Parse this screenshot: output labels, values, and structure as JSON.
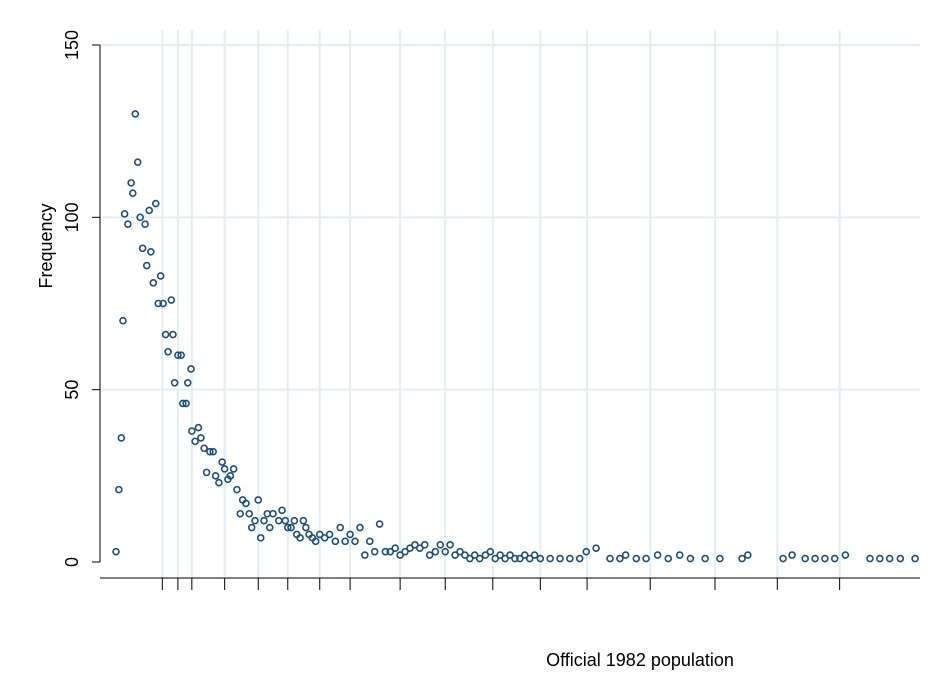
{
  "chart_data": {
    "type": "scatter",
    "y_label": "Frequency",
    "x_label": "Official 1982 population",
    "color": "#1f4e79",
    "grid": true,
    "xlim": [
      0,
      100
    ],
    "ylim": [
      0,
      150
    ],
    "xticks": [
      7.6,
      9.5,
      11.2,
      15.2,
      19.3,
      22.9,
      26.8,
      30.5,
      36.6,
      42.1,
      47.9,
      53.7,
      59.4,
      67.1,
      75,
      82.6,
      90.2
    ],
    "yticks": [
      0,
      50,
      100,
      150
    ],
    "x": [
      1.95,
      2.3,
      2.6,
      2.8,
      3.0,
      3.4,
      3.8,
      4.0,
      4.3,
      4.6,
      4.9,
      5.2,
      5.5,
      5.7,
      6.0,
      6.2,
      6.5,
      6.8,
      7.1,
      7.4,
      7.7,
      8.0,
      8.3,
      8.7,
      8.9,
      9.1,
      9.5,
      9.9,
      10.1,
      10.5,
      10.7,
      11.1,
      11.2,
      11.6,
      12.0,
      12.3,
      12.7,
      13.0,
      13.4,
      13.8,
      14.1,
      14.5,
      14.9,
      15.2,
      15.6,
      15.9,
      16.3,
      16.7,
      17.1,
      17.4,
      17.8,
      18.2,
      18.5,
      18.9,
      19.3,
      19.6,
      20.0,
      20.4,
      20.7,
      21.1,
      21.8,
      22.2,
      22.6,
      22.9,
      23.3,
      23.7,
      24.0,
      24.4,
      24.8,
      25.1,
      25.5,
      25.9,
      26.3,
      26.8,
      27.4,
      28.0,
      28.7,
      29.3,
      29.9,
      30.5,
      31.1,
      31.7,
      32.3,
      32.9,
      33.5,
      34.1,
      34.8,
      35.4,
      36.0,
      36.6,
      37.2,
      37.8,
      38.4,
      39.0,
      39.6,
      40.2,
      40.9,
      41.5,
      42.1,
      42.7,
      43.3,
      43.9,
      44.5,
      45.1,
      45.7,
      46.3,
      47.0,
      47.6,
      48.2,
      48.8,
      49.4,
      50.0,
      50.6,
      51.2,
      51.8,
      52.4,
      53.0,
      53.7,
      54.9,
      56.1,
      57.3,
      58.5,
      59.3,
      60.5,
      62.2,
      63.4,
      64.1,
      65.4,
      66.6,
      68.0,
      69.3,
      70.7,
      72.0,
      73.8,
      75.6,
      78.3,
      79.0,
      83.3,
      84.4,
      86.0,
      87.2,
      88.4,
      89.6,
      90.9,
      93.9,
      95.1,
      96.3,
      97.6,
      99.4
    ],
    "values": [
      3,
      21,
      36,
      70,
      101,
      98,
      110,
      107,
      130,
      116,
      100,
      91,
      98,
      86,
      102,
      90,
      81,
      104,
      75,
      83,
      75,
      66,
      61,
      76,
      66,
      52,
      60,
      60,
      46,
      46,
      52,
      56,
      38,
      35,
      39,
      36,
      33,
      26,
      32,
      32,
      25,
      23,
      29,
      27,
      24,
      25,
      27,
      21,
      14,
      18,
      17,
      14,
      10,
      12,
      18,
      7,
      12,
      14,
      10,
      14,
      12,
      15,
      12,
      10,
      10,
      12,
      8,
      7,
      12,
      10,
      8,
      7,
      6,
      8,
      7,
      8,
      6,
      10,
      6,
      8,
      6,
      10,
      2,
      6,
      3,
      11,
      3,
      3,
      4,
      2,
      3,
      4,
      5,
      4,
      5,
      2,
      3,
      5,
      3,
      5,
      2,
      3,
      2,
      1,
      2,
      1,
      2,
      3,
      1,
      2,
      1,
      2,
      1,
      1,
      2,
      1,
      2,
      1,
      1,
      1,
      1,
      1,
      3,
      4,
      1,
      1,
      2,
      1,
      1,
      2,
      1,
      2,
      1,
      1,
      1,
      1,
      2,
      1,
      2,
      1,
      1,
      1,
      1,
      2,
      1,
      1,
      1,
      1,
      1
    ]
  }
}
